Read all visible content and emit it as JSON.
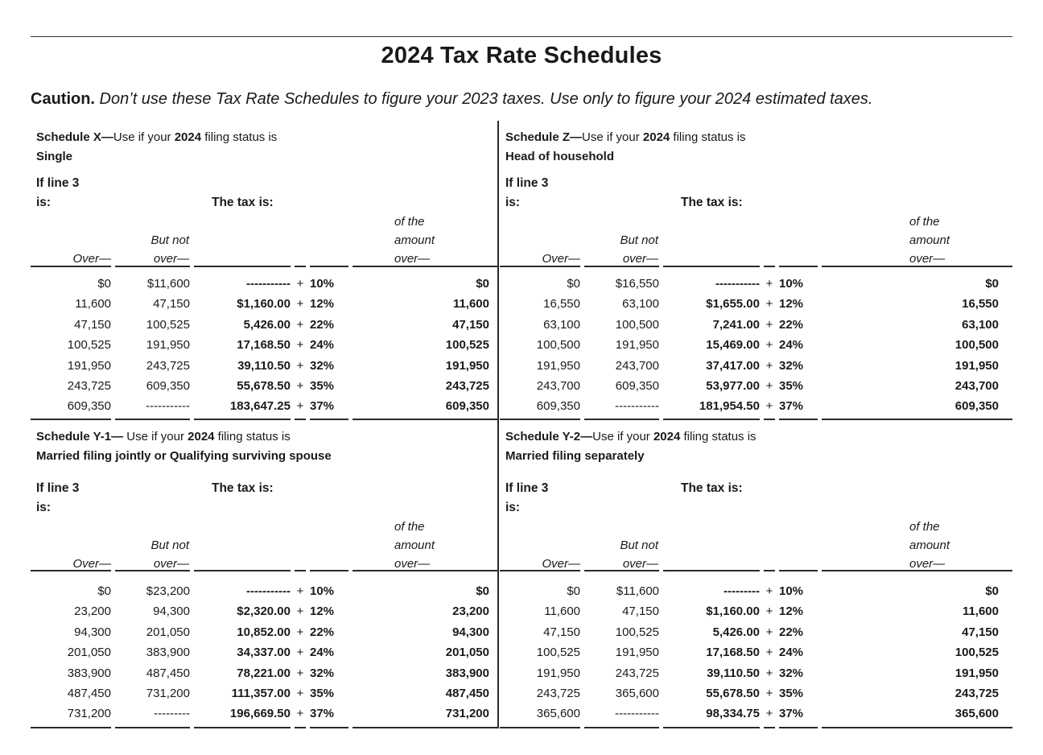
{
  "page": {
    "title": "2024 Tax Rate Schedules",
    "caution_label": "Caution.",
    "caution_text": " Don’t use these Tax Rate Schedules to figure your 2023 taxes. Use only to figure your 2024 estimated taxes."
  },
  "col_labels": {
    "if_line3_l1": "If line 3",
    "if_line3_l2": "is:",
    "tax_is": "The tax is:",
    "over": "Over—",
    "but_not": "But not",
    "but_not_over": "over—",
    "of_the": "of the",
    "amount": "amount",
    "amount_over": "over—"
  },
  "schedules": [
    {
      "id": "X",
      "title_bold": "Schedule X—",
      "title_mid": "Use if your ",
      "title_year": "2024",
      "title_tail": " filing status is",
      "status": "Single",
      "rows": [
        {
          "over": "$0",
          "butnot": "$11,600",
          "base": "-----------",
          "plus": "+",
          "rate": "10%",
          "ofover": "$0"
        },
        {
          "over": "11,600",
          "butnot": "47,150",
          "base": "$1,160.00",
          "plus": "+",
          "rate": "12%",
          "ofover": "11,600"
        },
        {
          "over": "47,150",
          "butnot": "100,525",
          "base": "5,426.00",
          "plus": "+",
          "rate": "22%",
          "ofover": "47,150"
        },
        {
          "over": "100,525",
          "butnot": "191,950",
          "base": "17,168.50",
          "plus": "+",
          "rate": "24%",
          "ofover": "100,525"
        },
        {
          "over": "191,950",
          "butnot": "243,725",
          "base": "39,110.50",
          "plus": "+",
          "rate": "32%",
          "ofover": "191,950"
        },
        {
          "over": "243,725",
          "butnot": "609,350",
          "base": "55,678.50",
          "plus": "+",
          "rate": "35%",
          "ofover": "243,725"
        },
        {
          "over": "609,350",
          "butnot": "-----------",
          "base": "183,647.25",
          "plus": "+",
          "rate": "37%",
          "ofover": "609,350"
        }
      ]
    },
    {
      "id": "Z",
      "title_bold": "Schedule Z—",
      "title_mid": "Use if your ",
      "title_year": "2024",
      "title_tail": " filing status is",
      "status": "Head of household",
      "rows": [
        {
          "over": "$0",
          "butnot": "$16,550",
          "base": "-----------",
          "plus": "+",
          "rate": "10%",
          "ofover": "$0"
        },
        {
          "over": "16,550",
          "butnot": "63,100",
          "base": "$1,655.00",
          "plus": "+",
          "rate": "12%",
          "ofover": "16,550"
        },
        {
          "over": "63,100",
          "butnot": "100,500",
          "base": "7,241.00",
          "plus": "+",
          "rate": "22%",
          "ofover": "63,100"
        },
        {
          "over": "100,500",
          "butnot": "191,950",
          "base": "15,469.00",
          "plus": "+",
          "rate": "24%",
          "ofover": "100,500"
        },
        {
          "over": "191,950",
          "butnot": "243,700",
          "base": "37,417.00",
          "plus": "+",
          "rate": "32%",
          "ofover": "191,950"
        },
        {
          "over": "243,700",
          "butnot": "609,350",
          "base": "53,977.00",
          "plus": "+",
          "rate": "35%",
          "ofover": "243,700"
        },
        {
          "over": "609,350",
          "butnot": "-----------",
          "base": "181,954.50",
          "plus": "+",
          "rate": "37%",
          "ofover": "609,350"
        }
      ]
    },
    {
      "id": "Y-1",
      "title_bold": "Schedule Y-1—",
      "title_mid": " Use if your ",
      "title_year": "2024",
      "title_tail": " filing status is",
      "status": "Married filing jointly or Qualifying surviving spouse",
      "rows": [
        {
          "over": "$0",
          "butnot": "$23,200",
          "base": "-----------",
          "plus": "+",
          "rate": "10%",
          "ofover": "$0"
        },
        {
          "over": "23,200",
          "butnot": "94,300",
          "base": "$2,320.00",
          "plus": "+",
          "rate": "12%",
          "ofover": "23,200"
        },
        {
          "over": "94,300",
          "butnot": "201,050",
          "base": "10,852.00",
          "plus": "+",
          "rate": "22%",
          "ofover": "94,300"
        },
        {
          "over": "201,050",
          "butnot": "383,900",
          "base": "34,337.00",
          "plus": "+",
          "rate": "24%",
          "ofover": "201,050"
        },
        {
          "over": "383,900",
          "butnot": "487,450",
          "base": "78,221.00",
          "plus": "+",
          "rate": "32%",
          "ofover": "383,900"
        },
        {
          "over": "487,450",
          "butnot": "731,200",
          "base": "111,357.00",
          "plus": "+",
          "rate": "35%",
          "ofover": "487,450"
        },
        {
          "over": "731,200",
          "butnot": "---------",
          "base": "196,669.50",
          "plus": "+",
          "rate": "37%",
          "ofover": "731,200"
        }
      ]
    },
    {
      "id": "Y-2",
      "title_bold": "Schedule Y-2—",
      "title_mid": "Use if your ",
      "title_year": "2024",
      "title_tail": " filing status is",
      "status": "Married filing separately",
      "rows": [
        {
          "over": "$0",
          "butnot": "$11,600",
          "base": "---------",
          "plus": "+",
          "rate": "10%",
          "ofover": "$0"
        },
        {
          "over": "11,600",
          "butnot": "47,150",
          "base": "$1,160.00",
          "plus": "+",
          "rate": "12%",
          "ofover": "11,600"
        },
        {
          "over": "47,150",
          "butnot": "100,525",
          "base": "5,426.00",
          "plus": "+",
          "rate": "22%",
          "ofover": "47,150"
        },
        {
          "over": "100,525",
          "butnot": "191,950",
          "base": "17,168.50",
          "plus": "+",
          "rate": "24%",
          "ofover": "100,525"
        },
        {
          "over": "191,950",
          "butnot": "243,725",
          "base": "39,110.50",
          "plus": "+",
          "rate": "32%",
          "ofover": "191,950"
        },
        {
          "over": "243,725",
          "butnot": "365,600",
          "base": "55,678.50",
          "plus": "+",
          "rate": "35%",
          "ofover": "243,725"
        },
        {
          "over": "365,600",
          "butnot": "-----------",
          "base": "98,334.75",
          "plus": "+",
          "rate": "37%",
          "ofover": "365,600"
        }
      ]
    }
  ]
}
